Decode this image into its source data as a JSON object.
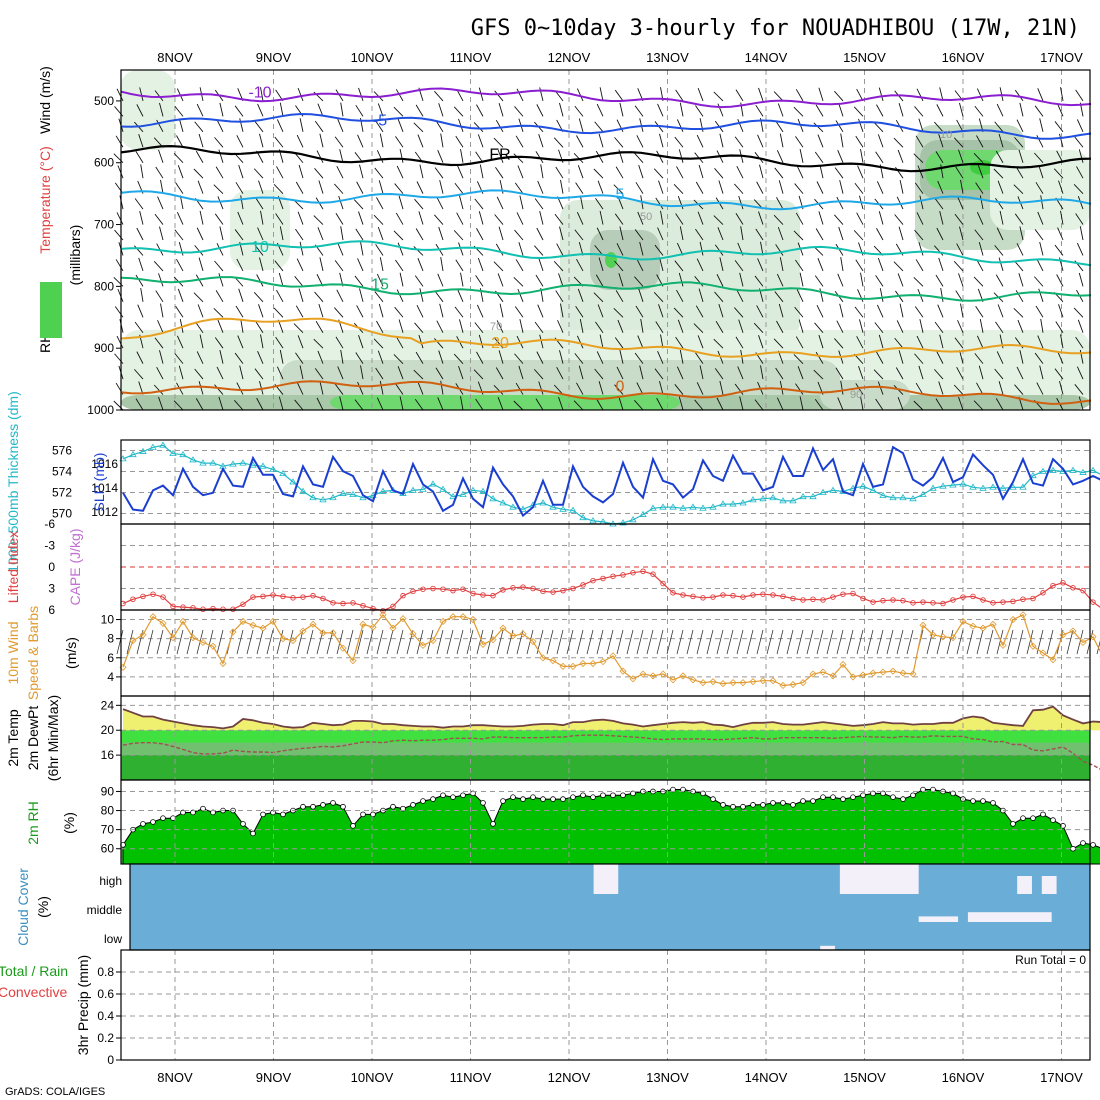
{
  "title": "GFS 0~10day 3-hourly for NOUADHIBOU (17W, 21N)",
  "credit": "GrADS: COLA/IGES",
  "dates": [
    "8NOV",
    "9NOV",
    "10NOV",
    "11NOV",
    "12NOV",
    "13NOV",
    "14NOV",
    "15NOV",
    "16NOV",
    "17NOV"
  ],
  "colors": {
    "purple": "#8b1fd0",
    "blue": "#2050e0",
    "lightblue": "#1ea8e8",
    "teal": "#10c0b0",
    "green_line": "#10b070",
    "orange": "#e8a020",
    "dark_orange": "#d06010",
    "rh_green": "#50d050",
    "slp_blue": "#1a3fd0",
    "thick_cyan": "#20b8c8",
    "li_red": "#e04040",
    "wind_orange": "#e09a30",
    "temp_yellow": "#f0f070",
    "dew_green": "#40e040",
    "cloud_blue": "#6aaed8"
  },
  "chart_data": [
    {
      "type": "contour",
      "name": "vertical_profile",
      "ylabel_parts": [
        "RH (%)",
        "Temperature (°C)",
        "Wind (m/s)",
        "(millibars)"
      ],
      "yticks": [
        500,
        600,
        700,
        800,
        900,
        1000
      ],
      "ylim": [
        450,
        1000
      ],
      "temperature_contours": [
        {
          "label": "-10",
          "level_mb": 485
        },
        {
          "label": "-5",
          "level_mb": 530
        },
        {
          "label": "FR",
          "level_mb": 585
        },
        {
          "label": "5",
          "level_mb": 650
        },
        {
          "label": "10",
          "level_mb": 735
        },
        {
          "label": "15",
          "level_mb": 795
        },
        {
          "label": "20",
          "level_mb": 890
        },
        {
          "label": "0",
          "level_mb": 960
        }
      ],
      "rh_labels": [
        "10",
        "50",
        "70",
        "90"
      ]
    },
    {
      "type": "line",
      "name": "slp_thickness",
      "ylabel_left": "1000~500mb Thickness (dm)",
      "ylabel_right": "SLP (mb)",
      "left_ticks": [
        570,
        572,
        574,
        576
      ],
      "right_ticks": [
        1012,
        1014,
        1016
      ],
      "series": [
        {
          "name": "SLP (mb)",
          "values": [
            1013.6,
            1012.2,
            1012.1,
            1013.8,
            1014.2,
            1013.4,
            1015.6,
            1014.1,
            1013.4,
            1013.6,
            1015.6,
            1014.2,
            1014.1,
            1016.5,
            1015.1,
            1015.1,
            1013.5,
            1013.3,
            1015.8,
            1014.3,
            1014.1,
            1016.6,
            1015.4,
            1015.0,
            1013.4,
            1012.9,
            1015.4,
            1013.8,
            1013.5,
            1016.0,
            1014.3,
            1013.7,
            1012.1,
            1012.6,
            1014.8,
            1013.1,
            1012.4,
            1015.7,
            1014.3,
            1013.3,
            1011.7,
            1012.4,
            1014.6,
            1012.6,
            1012.6,
            1015.8,
            1014.1,
            1013.3,
            1012.8,
            1013.5,
            1016.1,
            1014.1,
            1013.2,
            1016.4,
            1014.6,
            1014.3,
            1013.2,
            1013.9,
            1016.3,
            1015.0,
            1014.6,
            1016.7,
            1015.2,
            1015.2,
            1013.8,
            1014.1,
            1016.6,
            1015.0,
            1015.0,
            1017.3,
            1015.5,
            1016.4,
            1013.7,
            1013.4,
            1016.0,
            1014.1,
            1014.3,
            1017.4,
            1016.9,
            1014.7,
            1014.2,
            1014.9,
            1016.5,
            1014.5,
            1014.9,
            1016.8,
            1015.9,
            1015.1,
            1013.1,
            1014.5,
            1016.4,
            1014.4,
            1014.2,
            1016.4,
            1015.6,
            1014.3,
            1014.6,
            1015.0,
            1014.6
          ]
        },
        {
          "name": "1000~500mb Thickness (dm)",
          "values": [
            575.2,
            575.6,
            575.9,
            576.3,
            576.5,
            575.7,
            575.6,
            575.1,
            574.8,
            574.8,
            574.5,
            574.7,
            574.8,
            574.6,
            574.5,
            574.2,
            573.8,
            573.0,
            572.1,
            571.5,
            571.3,
            571.5,
            571.9,
            571.8,
            571.5,
            571.7,
            572.1,
            572.2,
            571.9,
            572.2,
            572.3,
            572.8,
            572.3,
            571.6,
            571.8,
            572.2,
            572.1,
            571.4,
            571.0,
            570.6,
            570.4,
            570.8,
            571.0,
            570.6,
            570.4,
            570.3,
            569.6,
            569.3,
            569.2,
            569.0,
            569.1,
            569.4,
            569.9,
            570.5,
            570.6,
            570.6,
            570.5,
            570.6,
            570.5,
            570.6,
            570.9,
            570.9,
            571.0,
            571.3,
            571.4,
            571.5,
            571.2,
            571.2,
            571.6,
            571.6,
            572.0,
            572.2,
            572.1,
            572.4,
            572.6,
            572.2,
            571.7,
            571.5,
            571.5,
            571.4,
            571.8,
            572.4,
            572.6,
            572.7,
            572.8,
            572.5,
            572.4,
            572.5,
            572.4,
            572.5,
            572.5,
            573.6,
            574.0,
            574.1,
            574.0,
            574.1,
            573.9,
            574.1,
            573.6
          ]
        }
      ]
    },
    {
      "type": "line",
      "name": "lifted_index",
      "ylabel_left": "Lifted Index",
      "ylabel_right": "CAPE (J/kg)",
      "yticks": [
        6,
        3,
        0,
        -3,
        -6
      ],
      "yticklabels": [
        "6",
        "3",
        "0",
        "-3",
        "-6"
      ],
      "ylim": [
        6,
        -6
      ],
      "series": [
        {
          "name": "Lifted Index",
          "values": [
            5.1,
            4.5,
            4.1,
            3.8,
            4.2,
            5.5,
            5.6,
            5.7,
            5.9,
            5.8,
            5.9,
            5.9,
            5.2,
            4.2,
            4.1,
            3.9,
            4.1,
            4.3,
            4.2,
            4.0,
            4.4,
            5.0,
            5.1,
            5.0,
            5.4,
            5.8,
            6.1,
            5.5,
            4.0,
            3.4,
            3.1,
            3.0,
            3.1,
            3.3,
            3.1,
            3.7,
            3.9,
            4.0,
            3.2,
            2.9,
            2.8,
            3.0,
            3.4,
            3.5,
            3.3,
            3.0,
            2.5,
            1.9,
            1.6,
            1.3,
            1.1,
            0.8,
            0.6,
            1.0,
            2.3,
            3.6,
            3.9,
            4.1,
            4.3,
            4.2,
            3.9,
            4.0,
            4.2,
            3.9,
            3.8,
            3.9,
            4.1,
            4.4,
            4.6,
            4.5,
            4.6,
            4.2,
            3.8,
            3.7,
            4.4,
            4.9,
            4.7,
            4.6,
            4.7,
            5.0,
            4.9,
            5.0,
            5.1,
            4.6,
            4.2,
            4.1,
            4.6,
            5.0,
            4.9,
            4.8,
            4.5,
            4.4,
            3.6,
            2.6,
            2.2,
            2.9,
            3.3,
            4.9,
            5.9
          ]
        }
      ]
    },
    {
      "type": "line",
      "name": "wind_10m",
      "ylabel_left": "10m Wind",
      "ylabel_mid": "Speed & Barbs",
      "ylabel_right": "(m/s)",
      "yticks": [
        4,
        6,
        8,
        10
      ],
      "ylim": [
        2,
        11
      ],
      "series": [
        {
          "name": "10m Wind Speed (m/s)",
          "values": [
            5.0,
            7.8,
            8.4,
            10.3,
            9.6,
            8.1,
            9.8,
            8.1,
            7.6,
            7.2,
            5.4,
            8.7,
            9.8,
            9.4,
            9.1,
            9.8,
            8.0,
            7.8,
            8.8,
            9.5,
            8.6,
            8.6,
            7.0,
            5.7,
            9.5,
            9.2,
            10.5,
            9.1,
            10.1,
            8.5,
            7.3,
            7.8,
            9.8,
            10.3,
            10.3,
            10.0,
            7.4,
            7.9,
            9.1,
            8.3,
            8.5,
            7.7,
            6.0,
            5.7,
            5.1,
            5.1,
            5.4,
            5.4,
            5.6,
            6.2,
            4.6,
            3.8,
            4.3,
            4.1,
            4.3,
            3.7,
            4.1,
            3.7,
            3.4,
            3.5,
            3.3,
            3.4,
            3.4,
            3.5,
            3.6,
            3.6,
            3.1,
            3.2,
            3.4,
            4.3,
            4.5,
            4.1,
            5.3,
            4.0,
            4.2,
            4.4,
            4.5,
            4.6,
            4.4,
            4.3,
            9.4,
            8.4,
            8.2,
            8.1,
            9.8,
            9.3,
            9.1,
            9.5,
            7.3,
            10.0,
            10.5,
            7.2,
            6.5,
            5.8,
            8.4,
            8.8,
            7.6,
            8.2,
            6.1
          ]
        }
      ]
    },
    {
      "type": "area",
      "name": "temp_2m",
      "ylabel_parts": [
        "2m Temp",
        "2m DewPt",
        "(6hr Min/Max)"
      ],
      "yticks": [
        16,
        20,
        24
      ],
      "ylim": [
        12,
        25.5
      ],
      "series": [
        {
          "name": "2m Temp (°C)",
          "values": [
            23.4,
            22.8,
            22.2,
            22.2,
            21.7,
            21.4,
            21.1,
            20.8,
            20.6,
            20.5,
            20.3,
            20.6,
            21.8,
            21.6,
            21.2,
            21.0,
            20.6,
            20.4,
            20.5,
            21.2,
            21.0,
            20.8,
            20.9,
            21.5,
            21.5,
            21.4,
            21.0,
            21.0,
            20.8,
            20.7,
            20.6,
            20.6,
            20.4,
            20.6,
            20.6,
            20.8,
            20.8,
            20.7,
            20.6,
            20.6,
            20.7,
            20.9,
            21.0,
            21.0,
            20.8,
            21.3,
            21.3,
            21.6,
            21.7,
            21.5,
            21.1,
            20.9,
            20.6,
            20.8,
            21.0,
            21.2,
            21.3,
            21.2,
            21.3,
            20.9,
            20.8,
            20.5,
            20.9,
            21.2,
            21.2,
            21.3,
            21.0,
            20.9,
            20.9,
            21.1,
            21.3,
            21.1,
            20.9,
            20.7,
            20.8,
            21.0,
            21.3,
            21.1,
            21.1,
            20.9,
            21.0,
            21.0,
            21.2,
            21.2,
            21.9,
            22.2,
            22.0,
            21.2,
            21.0,
            20.8,
            20.7,
            23.2,
            23.3,
            23.8,
            22.4,
            21.7,
            21.1,
            21.4,
            21.3
          ]
        },
        {
          "name": "2m DewPt (°C)",
          "values": [
            17.6,
            17.9,
            18.0,
            18.0,
            17.8,
            17.4,
            16.9,
            16.4,
            16.2,
            16.2,
            16.3,
            16.8,
            16.6,
            16.5,
            16.5,
            16.4,
            16.7,
            16.9,
            17.1,
            17.2,
            17.4,
            17.3,
            17.5,
            17.8,
            18.1,
            18.1,
            18.0,
            18.3,
            18.4,
            18.3,
            18.4,
            18.4,
            18.5,
            18.7,
            18.7,
            18.7,
            18.6,
            18.9,
            18.9,
            18.8,
            18.8,
            18.8,
            18.8,
            18.9,
            18.9,
            19.1,
            19.2,
            19.2,
            19.2,
            19.1,
            19.0,
            18.9,
            18.8,
            18.6,
            18.5,
            18.6,
            18.6,
            18.6,
            18.6,
            18.5,
            18.5,
            18.6,
            18.7,
            18.8,
            18.6,
            18.6,
            18.8,
            18.8,
            18.8,
            18.8,
            18.8,
            18.7,
            18.8,
            18.9,
            19.0,
            18.9,
            18.9,
            18.8,
            19.0,
            18.9,
            18.9,
            19.1,
            19.0,
            19.0,
            19.0,
            18.6,
            18.5,
            18.1,
            18.2,
            17.7,
            17.7,
            16.8,
            16.7,
            17.0,
            17.3,
            16.3,
            15.0,
            14.4,
            13.5
          ]
        }
      ]
    },
    {
      "type": "area",
      "name": "rh_2m",
      "ylabel_parts": [
        "2m RH",
        "(%)"
      ],
      "yticks": [
        60,
        70,
        80,
        90
      ],
      "ylim": [
        52,
        96
      ],
      "series": [
        {
          "name": "2m RH (%)",
          "values": [
            62,
            70,
            73,
            74,
            76,
            76,
            79,
            79,
            81,
            79,
            80,
            80,
            73,
            68,
            78,
            79,
            78,
            80,
            82,
            82,
            83,
            84,
            82,
            72,
            78,
            78,
            80,
            82,
            81,
            83,
            85,
            86,
            88,
            87,
            88,
            89,
            84,
            73,
            85,
            87,
            86,
            87,
            86,
            86,
            86,
            87,
            88,
            87,
            88,
            88,
            88,
            89,
            90,
            90,
            90,
            91,
            91,
            90,
            89,
            86,
            83,
            82,
            82,
            83,
            83,
            84,
            84,
            83,
            85,
            85,
            87,
            87,
            86,
            87,
            88,
            89,
            89,
            87,
            86,
            88,
            91,
            91,
            90,
            89,
            86,
            85,
            85,
            84,
            80,
            73,
            76,
            76,
            78,
            75,
            72,
            60,
            63,
            62,
            60
          ]
        }
      ]
    },
    {
      "type": "heatmap",
      "name": "cloud_cover",
      "ylabel_parts": [
        "Cloud Cover",
        "(%)"
      ],
      "row_labels": [
        "high",
        "middle",
        "low"
      ],
      "events": [
        {
          "row": "high",
          "start_day": 12.25,
          "end_day": 12.5,
          "percent": 100
        },
        {
          "row": "high",
          "start_day": 14.75,
          "end_day": 15.55,
          "percent": 100
        },
        {
          "row": "high",
          "start_day": 16.55,
          "end_day": 16.7,
          "percent": 60
        },
        {
          "row": "high",
          "start_day": 16.8,
          "end_day": 16.95,
          "percent": 60
        },
        {
          "row": "middle",
          "start_day": 15.55,
          "end_day": 15.95,
          "percent": 20
        },
        {
          "row": "middle",
          "start_day": 16.05,
          "end_day": 16.9,
          "percent": 35
        },
        {
          "row": "low",
          "start_day": 14.55,
          "end_day": 14.7,
          "percent": 15
        }
      ]
    },
    {
      "type": "bar",
      "name": "precip_3hr",
      "ylabel_left_parts": [
        "Total / Rain",
        "Convective"
      ],
      "ylabel_right": "3hr Precip (mm)",
      "yticks": [
        0,
        0.2,
        0.4,
        0.6,
        0.8
      ],
      "ylim": [
        0,
        1.0
      ],
      "run_total": "Run Total = 0",
      "values": []
    }
  ]
}
